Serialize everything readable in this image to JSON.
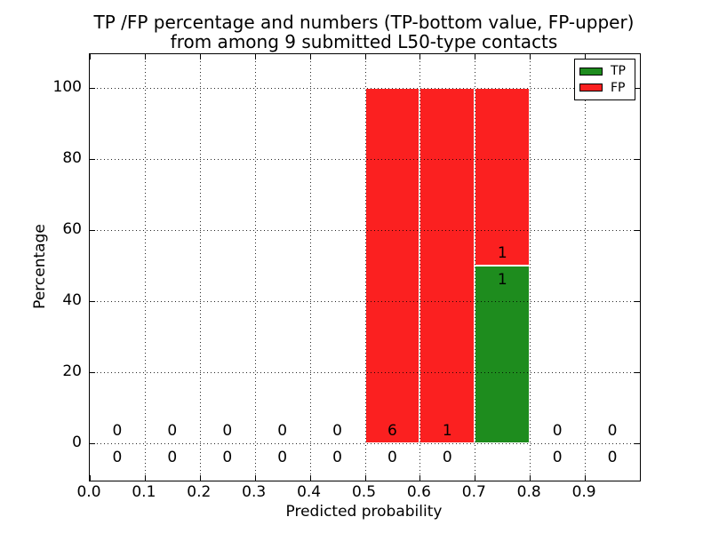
{
  "title": {
    "line1": "TP /FP percentage and numbers (TP-bottom value, FP-upper)",
    "line2": "from among 9 submitted L50-type contacts"
  },
  "axes": {
    "xlabel": "Predicted probability",
    "ylabel": "Percentage",
    "x_tick_labels": [
      "0.0",
      "0.1",
      "0.2",
      "0.3",
      "0.4",
      "0.5",
      "0.6",
      "0.7",
      "0.8",
      "0.9"
    ],
    "y_tick_labels": [
      "0",
      "20",
      "40",
      "60",
      "80",
      "100"
    ]
  },
  "legend": {
    "items": [
      {
        "label": "TP",
        "color": "#1e8c1e"
      },
      {
        "label": "FP",
        "color": "#fb2020"
      }
    ]
  },
  "chart_data": {
    "type": "bar",
    "stacked": true,
    "title": "TP /FP percentage and numbers (TP-bottom value, FP-upper) from among 9 submitted L50-type contacts",
    "xlabel": "Predicted probability",
    "ylabel": "Percentage",
    "total_submitted_contacts": 9,
    "bin_edges": [
      0.0,
      0.1,
      0.2,
      0.3,
      0.4,
      0.5,
      0.6,
      0.7,
      0.8,
      0.9,
      1.0
    ],
    "bin_width": 0.1,
    "xlim": [
      0.0,
      1.0
    ],
    "ylim": [
      -10.5,
      109.5
    ],
    "x_ticks": [
      0.0,
      0.1,
      0.2,
      0.3,
      0.4,
      0.5,
      0.6,
      0.7,
      0.8,
      0.9
    ],
    "y_ticks": [
      0,
      20,
      40,
      60,
      80,
      100
    ],
    "grid": {
      "style": "dotted",
      "color": "#000000",
      "drawn_above_bars": true,
      "axes": "both"
    },
    "bar_edge_color": "#ffffff",
    "series": [
      {
        "name": "TP",
        "color": "#1e8c1e",
        "percent": [
          0,
          0,
          0,
          0,
          0,
          0,
          0,
          50,
          0,
          0
        ],
        "counts": [
          0,
          0,
          0,
          0,
          0,
          0,
          0,
          1,
          0,
          0
        ]
      },
      {
        "name": "FP",
        "color": "#fb2020",
        "percent": [
          0,
          0,
          0,
          0,
          0,
          100,
          100,
          50,
          0,
          0
        ],
        "counts": [
          0,
          0,
          0,
          0,
          0,
          6,
          1,
          1,
          0,
          0
        ]
      }
    ],
    "count_label_rows": {
      "fp_above_line": [
        "0",
        "0",
        "0",
        "0",
        "0",
        "6",
        "1",
        "1",
        "0",
        "0"
      ],
      "tp_below_line": [
        "0",
        "0",
        "0",
        "0",
        "0",
        "0",
        "0",
        "1",
        "0",
        "0"
      ]
    }
  }
}
